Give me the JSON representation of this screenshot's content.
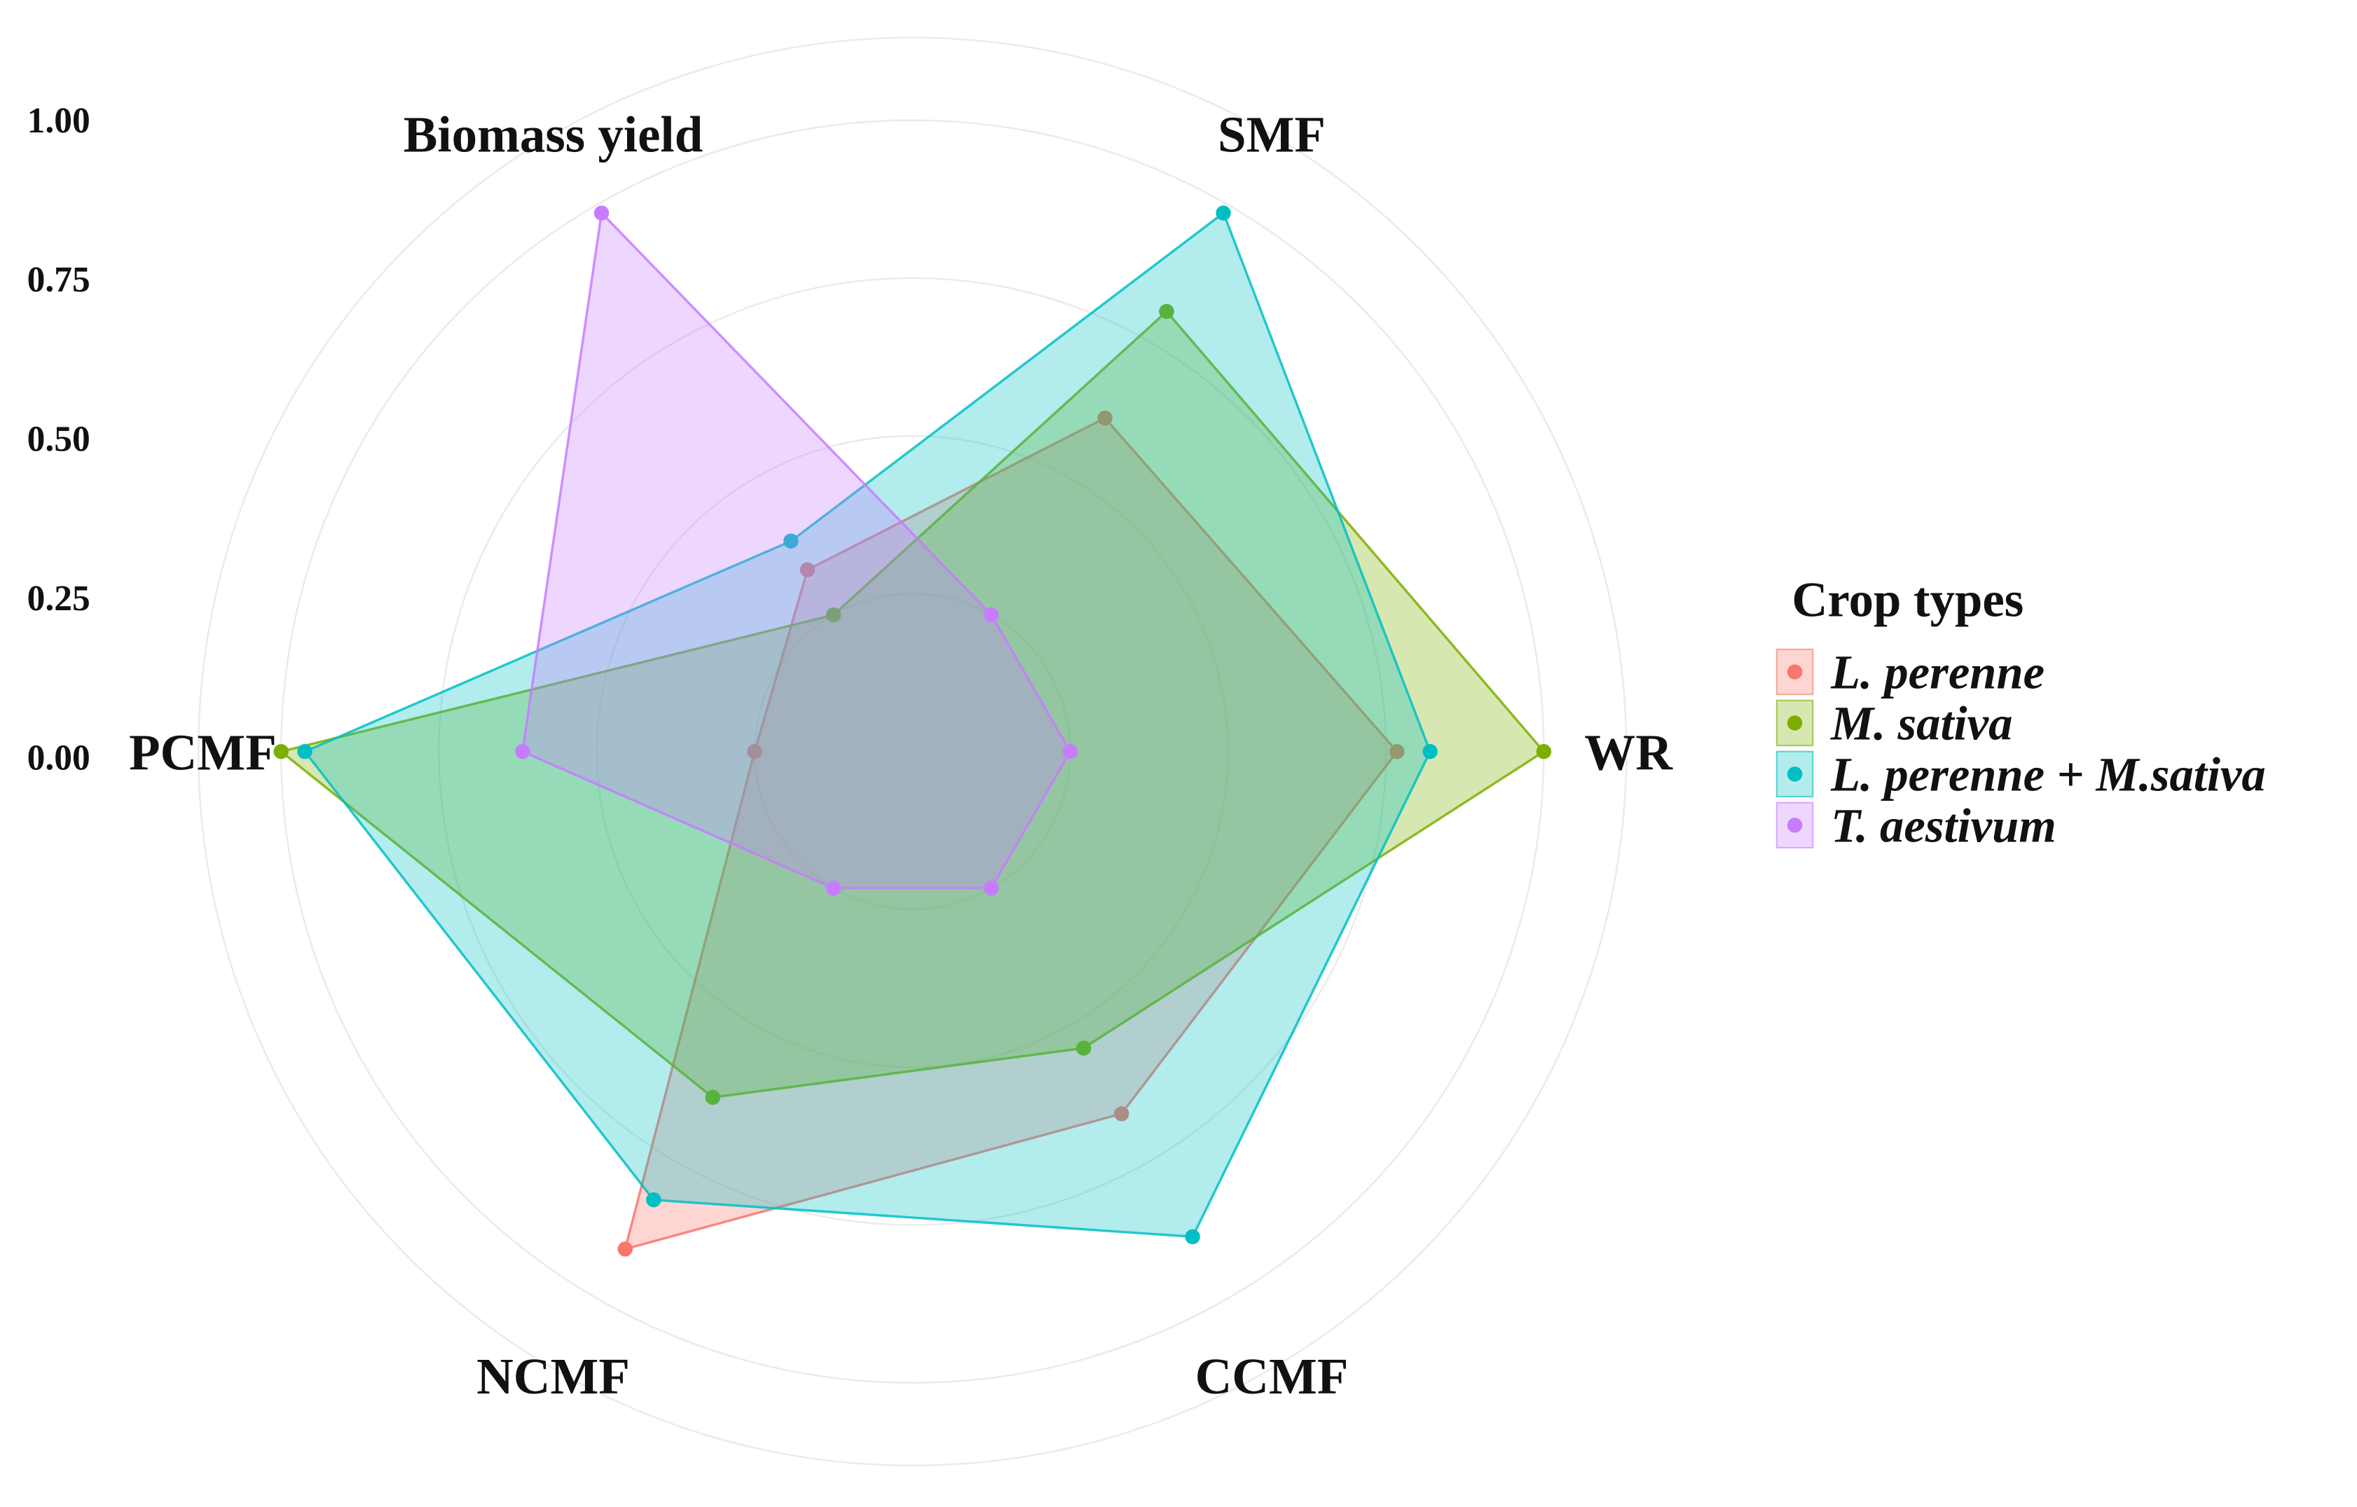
{
  "chart_data": {
    "type": "radar",
    "axes": [
      "Biomass yield",
      "SMF",
      "WR",
      "CCMF",
      "NCMF",
      "PCMF"
    ],
    "radial_ticks": [
      "0.00",
      "0.25",
      "0.50",
      "0.75",
      "1.00"
    ],
    "rlim": [
      0,
      1
    ],
    "grid": true,
    "legend_title": "Crop types",
    "legend_position": "right",
    "series": [
      {
        "name": "L. perenne",
        "color": "#F8766D",
        "values": [
          0.11,
          0.48,
          0.69,
          0.55,
          0.88,
          0.0
        ]
      },
      {
        "name": "M. sativa",
        "color": "#7CAE00",
        "values": [
          0.0,
          0.74,
          1.0,
          0.39,
          0.51,
          1.0
        ]
      },
      {
        "name": "L. perenne + M.sativa",
        "color": "#00BFC4",
        "values": [
          0.18,
          0.98,
          0.76,
          0.85,
          0.76,
          0.95
        ]
      },
      {
        "name": "T. aestivum",
        "color": "#C77CFF",
        "values": [
          0.98,
          0.0,
          0.0,
          0.0,
          0.0,
          0.49
        ]
      }
    ]
  }
}
